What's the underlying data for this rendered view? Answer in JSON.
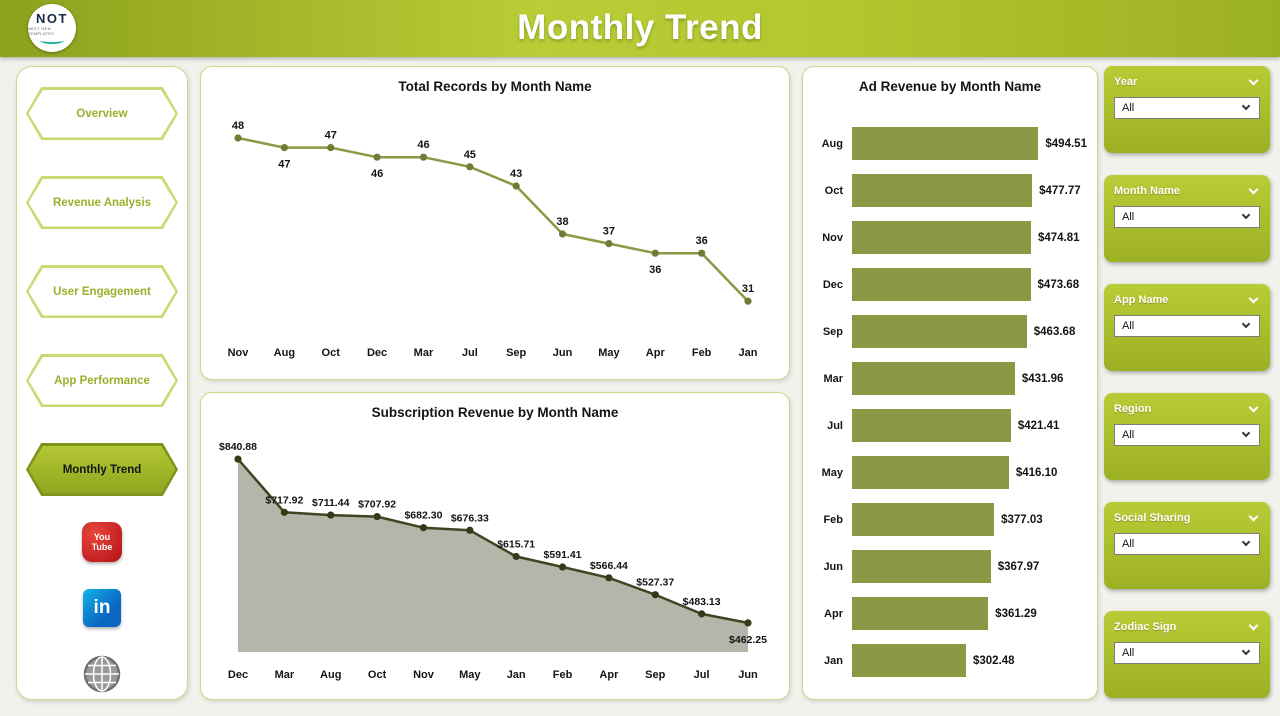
{
  "header": {
    "title": "Monthly Trend"
  },
  "logo": {
    "text": "NOT",
    "subtext": "NEXT GEN TEMPLATES"
  },
  "sidebar": {
    "items": [
      {
        "label": "Overview",
        "active": false
      },
      {
        "label": "Revenue Analysis",
        "active": false
      },
      {
        "label": "User Engagement",
        "active": false
      },
      {
        "label": "App Performance",
        "active": false
      },
      {
        "label": "Monthly Trend",
        "active": true
      }
    ],
    "social": [
      {
        "name": "youtube",
        "glyph_lines": [
          "You",
          "Tube"
        ]
      },
      {
        "name": "linkedin",
        "glyph": "in"
      },
      {
        "name": "website"
      }
    ]
  },
  "filters": [
    {
      "label": "Year",
      "value": "All"
    },
    {
      "label": "Month Name",
      "value": "All"
    },
    {
      "label": "App Name",
      "value": "All"
    },
    {
      "label": "Region",
      "value": "All"
    },
    {
      "label": "Social Sharing",
      "value": "All"
    },
    {
      "label": "Zodiac Sign",
      "value": "All"
    }
  ],
  "colors": {
    "accent_olive": "#8a9a44",
    "header_green": "#a9bd2b",
    "youtube_red": "#cc2b24",
    "linkedin_blue": "#0a66c2"
  },
  "chart_data": [
    {
      "type": "line",
      "title": "Total Records by Month Name",
      "categories": [
        "Nov",
        "Aug",
        "Oct",
        "Dec",
        "Mar",
        "Jul",
        "Sep",
        "Jun",
        "May",
        "Apr",
        "Feb",
        "Jan"
      ],
      "values": [
        48,
        47,
        47,
        46,
        46,
        45,
        43,
        38,
        37,
        36,
        36,
        31
      ],
      "label_positions": [
        "above",
        "below",
        "above",
        "below",
        "above",
        "above",
        "above",
        "above",
        "above",
        "below",
        "above",
        "above"
      ],
      "ylim": [
        28,
        50.5
      ],
      "xlabel": "",
      "ylabel": "",
      "line_color": "#8a9a44",
      "dot_color": "#6d7c36"
    },
    {
      "type": "area",
      "title": "Subscription Revenue by Month Name",
      "categories": [
        "Dec",
        "Mar",
        "Aug",
        "Oct",
        "Nov",
        "May",
        "Jan",
        "Feb",
        "Apr",
        "Sep",
        "Jul",
        "Jun"
      ],
      "values": [
        840.88,
        717.92,
        711.44,
        707.92,
        682.3,
        676.33,
        615.71,
        591.41,
        566.44,
        527.37,
        483.13,
        462.25
      ],
      "value_prefix": "$",
      "value_decimals": 2,
      "label_positions": [
        "above",
        "above",
        "above",
        "above",
        "above",
        "above",
        "above",
        "above",
        "above",
        "above",
        "above",
        "below"
      ],
      "label_size": 10.5,
      "ylim": [
        395,
        885
      ],
      "xlabel": "",
      "ylabel": "",
      "line_color": "#3f4522",
      "dot_color": "#343a18",
      "fill_color": "#b5b5aa"
    },
    {
      "type": "bar",
      "orientation": "horizontal",
      "title": "Ad Revenue by Month Name",
      "categories": [
        "Aug",
        "Oct",
        "Nov",
        "Dec",
        "Sep",
        "Mar",
        "Jul",
        "May",
        "Feb",
        "Jun",
        "Apr",
        "Jan"
      ],
      "values": [
        494.51,
        477.77,
        474.81,
        473.68,
        463.68,
        431.96,
        421.41,
        416.1,
        377.03,
        367.97,
        361.29,
        302.48
      ],
      "value_prefix": "$",
      "value_decimals": 2,
      "xlim": [
        0,
        520
      ],
      "xlabel": "",
      "ylabel": "",
      "bar_color": "#8a9a44"
    }
  ]
}
